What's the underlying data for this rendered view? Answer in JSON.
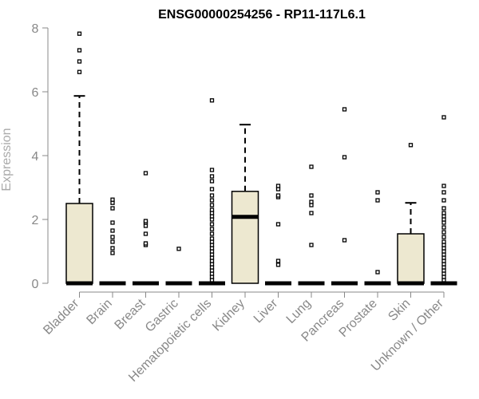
{
  "chart_data": {
    "type": "boxplot",
    "title": "ENSG00000254256 - RP11-117L6.1",
    "xlabel": "",
    "ylabel": "Expression",
    "ylim": [
      0,
      8
    ],
    "yticks": [
      0,
      2,
      4,
      6,
      8
    ],
    "grid": false,
    "legend": "none",
    "categories": [
      "Bladder",
      "Brain",
      "Breast",
      "Gastric",
      "Hematopoietic cells",
      "Kidney",
      "Liver",
      "Lung",
      "Pancreas",
      "Prostate",
      "Skin",
      "Unknown / Other"
    ],
    "boxes": [
      {
        "category": "Bladder",
        "q1": 0,
        "median": 0,
        "q3": 2.5,
        "whisker_low": 0,
        "whisker_high": 5.87,
        "outliers": [
          6.62,
          6.95,
          7.3,
          7.82
        ]
      },
      {
        "category": "Brain",
        "q1": 0,
        "median": 0,
        "q3": 0,
        "whisker_low": 0,
        "whisker_high": 0,
        "outliers": [
          0.95,
          1.1,
          1.3,
          1.45,
          1.65,
          1.9,
          2.35,
          2.52,
          2.62
        ]
      },
      {
        "category": "Breast",
        "q1": 0,
        "median": 0,
        "q3": 0,
        "whisker_low": 0,
        "whisker_high": 0,
        "outliers": [
          1.2,
          1.25,
          1.55,
          1.8,
          1.9,
          1.95,
          3.45
        ]
      },
      {
        "category": "Gastric",
        "q1": 0,
        "median": 0,
        "q3": 0,
        "whisker_low": 0,
        "whisker_high": 0,
        "outliers": [
          1.08
        ]
      },
      {
        "category": "Hematopoietic cells",
        "q1": 0,
        "median": 0,
        "q3": 0,
        "whisker_low": 0,
        "whisker_high": 0,
        "outliers": [
          0.1,
          0.2,
          0.3,
          0.4,
          0.5,
          0.6,
          0.7,
          0.8,
          0.9,
          1.0,
          1.1,
          1.2,
          1.3,
          1.4,
          1.55,
          1.7,
          1.85,
          2.0,
          2.1,
          2.2,
          2.3,
          2.45,
          2.6,
          2.75,
          2.95,
          3.2,
          3.35,
          3.55,
          5.73
        ]
      },
      {
        "category": "Kidney",
        "q1": 0,
        "median": 2.08,
        "q3": 2.88,
        "whisker_low": 0,
        "whisker_high": 4.97,
        "outliers": []
      },
      {
        "category": "Liver",
        "q1": 0,
        "median": 0,
        "q3": 0,
        "whisker_low": 0,
        "whisker_high": 0,
        "outliers": [
          0.58,
          0.7,
          1.85,
          2.7,
          2.75,
          2.95,
          3.05
        ]
      },
      {
        "category": "Lung",
        "q1": 0,
        "median": 0,
        "q3": 0,
        "whisker_low": 0,
        "whisker_high": 0,
        "outliers": [
          1.2,
          2.2,
          2.45,
          2.55,
          2.75,
          3.65
        ]
      },
      {
        "category": "Pancreas",
        "q1": 0,
        "median": 0,
        "q3": 0,
        "whisker_low": 0,
        "whisker_high": 0,
        "outliers": [
          1.35,
          3.95,
          5.45
        ]
      },
      {
        "category": "Prostate",
        "q1": 0,
        "median": 0,
        "q3": 0,
        "whisker_low": 0,
        "whisker_high": 0,
        "outliers": [
          0.35,
          2.6,
          2.85
        ]
      },
      {
        "category": "Skin",
        "q1": 0,
        "median": 0,
        "q3": 1.55,
        "whisker_low": 0,
        "whisker_high": 2.52,
        "outliers": [
          4.33
        ]
      },
      {
        "category": "Unknown / Other",
        "q1": 0,
        "median": 0,
        "q3": 0,
        "whisker_low": 0,
        "whisker_high": 0,
        "outliers": [
          0.1,
          0.2,
          0.3,
          0.4,
          0.5,
          0.6,
          0.7,
          0.8,
          0.9,
          1.0,
          1.1,
          1.2,
          1.3,
          1.45,
          1.6,
          1.75,
          1.9,
          2.0,
          2.1,
          2.2,
          2.35,
          2.6,
          2.85,
          3.05,
          5.2
        ]
      }
    ],
    "colors": {
      "box_fill": "#ede8d0",
      "box_stroke": "#000000",
      "axis": "#888888",
      "title": "#000000",
      "ylabel": "#aaaaaa"
    }
  }
}
